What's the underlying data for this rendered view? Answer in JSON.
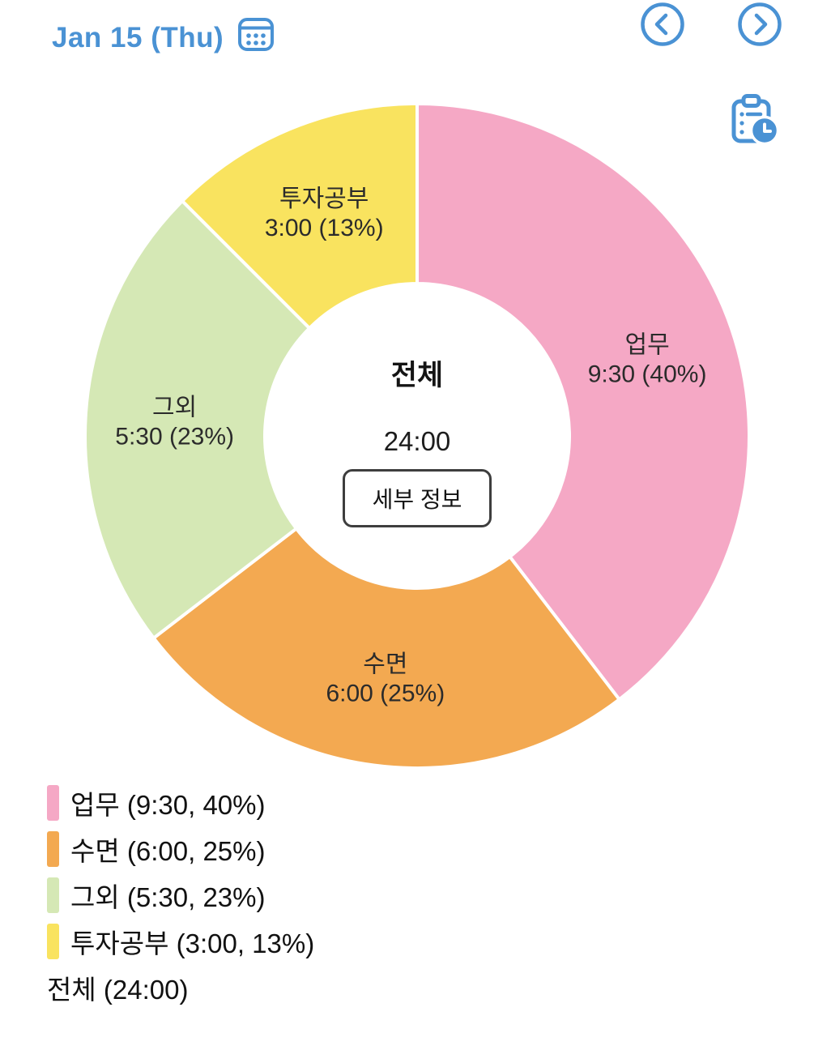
{
  "header": {
    "date_label": "Jan 15 (Thu)"
  },
  "colors": {
    "accent_blue": "#4A92D4",
    "segment_pink": "#F5A8C5",
    "segment_orange": "#F3A951",
    "segment_green": "#D5E8B5",
    "segment_yellow": "#F9E35F",
    "label_text": "#2B2B2B"
  },
  "icons": {
    "calendar": "calendar-icon",
    "prev": "chevron-left-icon",
    "next": "chevron-right-icon",
    "report": "clipboard-clock-icon"
  },
  "chart_data": {
    "type": "pie",
    "style": "donut",
    "direction": "clockwise",
    "start_angle_deg": 0,
    "total_hours": 24,
    "center": {
      "title": "전체",
      "value": "24:00",
      "button_label": "세부 정보"
    },
    "segments": [
      {
        "label": "업무",
        "time": "9:30",
        "hours": 9.5,
        "percent": 40,
        "color": "#F5A8C5"
      },
      {
        "label": "수면",
        "time": "6:00",
        "hours": 6.0,
        "percent": 25,
        "color": "#F3A951"
      },
      {
        "label": "그외",
        "time": "5:30",
        "hours": 5.5,
        "percent": 23,
        "color": "#D5E8B5"
      },
      {
        "label": "투자공부",
        "time": "3:00",
        "hours": 3.0,
        "percent": 13,
        "color": "#F9E35F"
      }
    ]
  },
  "legend": {
    "items": [
      {
        "text": "업무 (9:30, 40%)",
        "color": "#F5A8C5"
      },
      {
        "text": "수면 (6:00, 25%)",
        "color": "#F3A951"
      },
      {
        "text": "그외 (5:30, 23%)",
        "color": "#D5E8B5"
      },
      {
        "text": "투자공부 (3:00, 13%)",
        "color": "#F9E35F"
      }
    ],
    "total_text": "전체 (24:00)"
  }
}
